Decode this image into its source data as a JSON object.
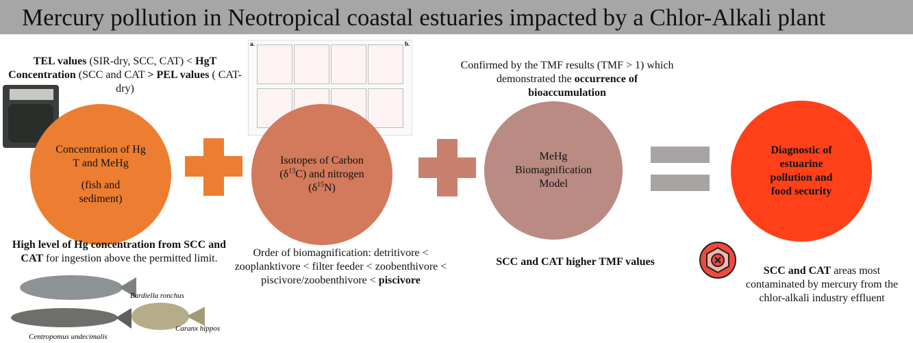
{
  "header": {
    "title": "Mercury pollution in Neotropical coastal estuaries impacted by a Chlor-Alkali plant"
  },
  "notes": {
    "tel": [
      {
        "text": "TEL values",
        "style": "bold"
      },
      {
        "text": " (SIR-dry, SCC, CAT) < ",
        "style": "normal"
      },
      {
        "text": "HgT Concentration",
        "style": "bold"
      },
      {
        "text": " (SCC and CAT ",
        "style": "normal"
      },
      {
        "text": "> PEL values",
        "style": "bold"
      },
      {
        "text": " ( CAT-dry)",
        "style": "normal"
      }
    ],
    "tmf": [
      {
        "text": "Confirmed by the TMF results (TMF > 1) which demonstrated the ",
        "style": "normal"
      },
      {
        "text": "occurrence of bioaccumulation",
        "style": "bold"
      }
    ],
    "hg_level": [
      {
        "text": "High level of Hg concentration from SCC and CAT",
        "style": "bold"
      },
      {
        "text": " for ingestion above the permitted limit.",
        "style": "normal"
      }
    ],
    "order": [
      {
        "text": "Order of biomagnification: detritivore < zooplanktivore < filter feeder < zoobenthivore < piscivore/zoobenthivore < ",
        "style": "normal"
      },
      {
        "text": "piscivore",
        "style": "bold"
      }
    ],
    "tmf_values": [
      {
        "text": "SCC and CAT  higher TMF values",
        "style": "bold"
      }
    ],
    "contamination": [
      {
        "text": "SCC and CAT",
        "style": "bold"
      },
      {
        "text": " areas most contaminated by mercury from the chlor-alkali industry effluent",
        "style": "normal"
      }
    ]
  },
  "circles": [
    {
      "runs": [
        {
          "text": "Concentration of Hg T and MeHg",
          "style": "normal"
        }
      ],
      "note": "(fish and sediment)"
    },
    {
      "runs": [
        {
          "text": "Isotopes of Carbon (δ",
          "style": "normal"
        },
        {
          "text": "13",
          "style": "sup"
        },
        {
          "text": "C) and nitrogen (δ",
          "style": "normal"
        },
        {
          "text": "15",
          "style": "sup"
        },
        {
          "text": "N)",
          "style": "normal"
        }
      ]
    },
    {
      "runs": [
        {
          "text": "MeHg Biomagnification Model",
          "style": "normal"
        }
      ]
    },
    {
      "runs": [
        {
          "text": "Diagnostic of estuarine pollution and food security",
          "style": "bold"
        }
      ]
    }
  ],
  "inset": {
    "panel_a": "a.",
    "panel_b": "b."
  },
  "species": [
    "Bardiella ronchus",
    "Centropomus undecimalis",
    "Caranx hippos"
  ]
}
